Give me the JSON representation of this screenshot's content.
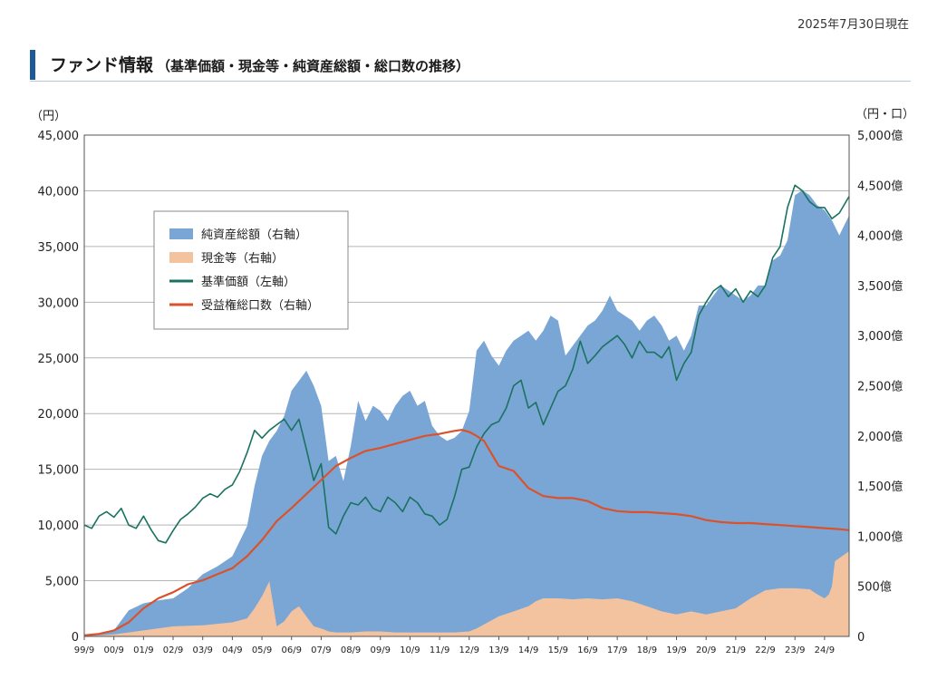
{
  "header": {
    "as_of": "2025年7月30日現在",
    "title": "ファンド情報",
    "subtitle": "（基準価額・現金等・純資産総額・総口数の推移）"
  },
  "chart_data": {
    "type": "area",
    "left_axis": {
      "unit_label": "（円）",
      "min": 0,
      "max": 45000,
      "ticks": [
        "0",
        "5,000",
        "10,000",
        "15,000",
        "20,000",
        "25,000",
        "30,000",
        "35,000",
        "40,000",
        "45,000"
      ]
    },
    "right_axis": {
      "unit_label": "（円・口）",
      "min": 0,
      "max": 5000,
      "ticks": [
        "0",
        "500億",
        "1,000億",
        "1,500億",
        "2,000億",
        "2,500億",
        "3,000億",
        "3,500億",
        "4,000億",
        "4,500億",
        "5,000億"
      ]
    },
    "x_axis": {
      "min": 1999.75,
      "max": 2025.58,
      "ticks": [
        "99/9",
        "00/9",
        "01/9",
        "02/9",
        "03/9",
        "04/9",
        "05/9",
        "06/9",
        "07/9",
        "08/9",
        "09/9",
        "10/9",
        "11/9",
        "12/9",
        "13/9",
        "14/9",
        "15/9",
        "16/9",
        "17/9",
        "18/9",
        "19/9",
        "20/9",
        "21/9",
        "22/9",
        "23/9",
        "24/9"
      ]
    },
    "grid": true,
    "legend": {
      "placement": "upper-left",
      "items": [
        {
          "label": "純資産総額（右軸）",
          "kind": "area",
          "color": "#7aa6d6"
        },
        {
          "label": "現金等（右軸）",
          "kind": "area",
          "color": "#f3c3a0"
        },
        {
          "label": "基準価額（左軸）",
          "kind": "line",
          "color": "#1a7260"
        },
        {
          "label": "受益権総口数（右軸）",
          "kind": "line",
          "color": "#d9522c"
        }
      ]
    },
    "series": [
      {
        "name": "純資産総額（右軸）",
        "axis": "right",
        "kind": "area",
        "color": "#7aa6d6",
        "x": [
          1999.75,
          2000.25,
          2000.75,
          2001.25,
          2001.75,
          2002.25,
          2002.75,
          2003.25,
          2003.75,
          2004.25,
          2004.75,
          2005.25,
          2005.5,
          2005.75,
          2006.0,
          2006.25,
          2006.5,
          2006.75,
          2007.0,
          2007.25,
          2007.5,
          2007.75,
          2008.0,
          2008.25,
          2008.5,
          2008.75,
          2009.0,
          2009.25,
          2009.5,
          2009.75,
          2010.0,
          2010.25,
          2010.5,
          2010.75,
          2011.0,
          2011.25,
          2011.5,
          2011.75,
          2012.0,
          2012.25,
          2012.5,
          2012.75,
          2013.0,
          2013.25,
          2013.5,
          2013.75,
          2014.0,
          2014.25,
          2014.5,
          2014.75,
          2015.0,
          2015.25,
          2015.5,
          2015.75,
          2016.0,
          2016.25,
          2016.5,
          2016.75,
          2017.0,
          2017.25,
          2017.5,
          2017.75,
          2018.0,
          2018.25,
          2018.5,
          2018.75,
          2019.0,
          2019.25,
          2019.5,
          2019.75,
          2020.0,
          2020.25,
          2020.5,
          2020.75,
          2021.0,
          2021.25,
          2021.5,
          2021.75,
          2022.0,
          2022.25,
          2022.5,
          2022.75,
          2023.0,
          2023.25,
          2023.5,
          2023.75,
          2024.0,
          2024.25,
          2024.5,
          2024.75,
          2025.0,
          2025.25,
          2025.58
        ],
        "values": [
          0,
          20,
          60,
          260,
          330,
          360,
          380,
          480,
          620,
          700,
          800,
          1100,
          1500,
          1800,
          1950,
          2050,
          2200,
          2450,
          2550,
          2650,
          2500,
          2300,
          1750,
          1800,
          1550,
          1900,
          2350,
          2150,
          2300,
          2250,
          2150,
          2300,
          2400,
          2450,
          2300,
          2350,
          2100,
          2000,
          1950,
          1980,
          2050,
          2250,
          2850,
          2950,
          2800,
          2700,
          2850,
          2950,
          3000,
          3050,
          2950,
          3050,
          3200,
          3150,
          2800,
          2900,
          3000,
          3100,
          3150,
          3250,
          3400,
          3250,
          3200,
          3150,
          3050,
          3150,
          3200,
          3100,
          2950,
          3000,
          2850,
          3000,
          3300,
          3300,
          3400,
          3500,
          3450,
          3400,
          3350,
          3400,
          3500,
          3500,
          3750,
          3800,
          3950,
          4400,
          4450,
          4400,
          4300,
          4250,
          4150,
          4000,
          4200
        ]
      },
      {
        "name": "現金等（右軸）",
        "axis": "right",
        "kind": "area",
        "color": "#f3c3a0",
        "x": [
          1999.75,
          2000.75,
          2001.75,
          2002.75,
          2003.75,
          2004.75,
          2005.25,
          2005.5,
          2005.75,
          2006.0,
          2006.25,
          2006.5,
          2006.75,
          2007.0,
          2007.25,
          2007.5,
          2007.75,
          2008.0,
          2008.25,
          2008.75,
          2009.25,
          2009.75,
          2010.25,
          2010.75,
          2011.25,
          2011.75,
          2012.25,
          2012.75,
          2013.0,
          2013.25,
          2013.75,
          2014.25,
          2014.75,
          2015.0,
          2015.25,
          2015.75,
          2016.25,
          2016.75,
          2017.25,
          2017.75,
          2018.25,
          2018.75,
          2019.25,
          2019.75,
          2020.25,
          2020.75,
          2021.25,
          2021.75,
          2022.25,
          2022.75,
          2023.25,
          2023.75,
          2024.25,
          2024.5,
          2024.75,
          2024.9,
          2025.0,
          2025.1,
          2025.58
        ],
        "values": [
          0,
          20,
          60,
          100,
          110,
          140,
          180,
          280,
          400,
          550,
          100,
          150,
          250,
          300,
          200,
          100,
          80,
          50,
          40,
          40,
          50,
          50,
          40,
          40,
          40,
          40,
          40,
          50,
          80,
          120,
          200,
          250,
          300,
          350,
          380,
          380,
          370,
          380,
          370,
          380,
          350,
          300,
          250,
          220,
          250,
          220,
          250,
          280,
          380,
          460,
          480,
          480,
          470,
          420,
          380,
          420,
          500,
          750,
          850
        ]
      },
      {
        "name": "基準価額（左軸）",
        "axis": "left",
        "kind": "line",
        "color": "#1a7260",
        "x": [
          1999.75,
          2000.0,
          2000.25,
          2000.5,
          2000.75,
          2001.0,
          2001.25,
          2001.5,
          2001.75,
          2002.0,
          2002.25,
          2002.5,
          2002.75,
          2003.0,
          2003.25,
          2003.5,
          2003.75,
          2004.0,
          2004.25,
          2004.5,
          2004.75,
          2005.0,
          2005.25,
          2005.5,
          2005.75,
          2006.0,
          2006.25,
          2006.5,
          2006.75,
          2007.0,
          2007.25,
          2007.5,
          2007.75,
          2008.0,
          2008.25,
          2008.5,
          2008.75,
          2009.0,
          2009.25,
          2009.5,
          2009.75,
          2010.0,
          2010.25,
          2010.5,
          2010.75,
          2011.0,
          2011.25,
          2011.5,
          2011.75,
          2012.0,
          2012.25,
          2012.5,
          2012.75,
          2013.0,
          2013.25,
          2013.5,
          2013.75,
          2014.0,
          2014.25,
          2014.5,
          2014.75,
          2015.0,
          2015.25,
          2015.5,
          2015.75,
          2016.0,
          2016.25,
          2016.5,
          2016.75,
          2017.0,
          2017.25,
          2017.5,
          2017.75,
          2018.0,
          2018.25,
          2018.5,
          2018.75,
          2019.0,
          2019.25,
          2019.5,
          2019.75,
          2020.0,
          2020.25,
          2020.5,
          2020.75,
          2021.0,
          2021.25,
          2021.5,
          2021.75,
          2022.0,
          2022.25,
          2022.5,
          2022.75,
          2023.0,
          2023.25,
          2023.5,
          2023.75,
          2024.0,
          2024.25,
          2024.5,
          2024.75,
          2025.0,
          2025.25,
          2025.58
        ],
        "values": [
          10000,
          9700,
          10800,
          11200,
          10700,
          11500,
          10000,
          9700,
          10800,
          9600,
          8600,
          8400,
          9500,
          10500,
          11000,
          11600,
          12400,
          12800,
          12500,
          13200,
          13600,
          14800,
          16500,
          18500,
          17800,
          18500,
          19000,
          19500,
          18500,
          19500,
          16800,
          14000,
          15500,
          9800,
          9200,
          10800,
          12000,
          11800,
          12500,
          11500,
          11200,
          12500,
          12000,
          11200,
          12500,
          12000,
          11000,
          10800,
          10000,
          10500,
          12500,
          15000,
          15200,
          17000,
          18200,
          19000,
          19300,
          20500,
          22500,
          23000,
          20500,
          21000,
          19000,
          20500,
          22000,
          22500,
          24000,
          26500,
          24500,
          25200,
          26000,
          26500,
          27000,
          26200,
          25000,
          26500,
          25500,
          25500,
          25000,
          26000,
          23000,
          24500,
          25500,
          28800,
          30000,
          31000,
          31500,
          30500,
          31200,
          30000,
          31000,
          30500,
          31500,
          34000,
          35000,
          38500,
          40500,
          40000,
          39000,
          38500,
          38500,
          37500,
          38000,
          39500
        ]
      },
      {
        "name": "受益権総口数（右軸）",
        "axis": "right",
        "kind": "line",
        "color": "#d9522c",
        "x": [
          1999.75,
          2000.25,
          2000.75,
          2001.25,
          2001.75,
          2002.25,
          2002.75,
          2003.25,
          2003.75,
          2004.25,
          2004.75,
          2005.25,
          2005.75,
          2006.25,
          2006.75,
          2007.25,
          2007.75,
          2008.25,
          2008.75,
          2009.25,
          2009.75,
          2010.25,
          2010.75,
          2011.25,
          2011.75,
          2012.25,
          2012.5,
          2012.75,
          2013.0,
          2013.25,
          2013.75,
          2014.25,
          2014.75,
          2015.25,
          2015.75,
          2016.25,
          2016.75,
          2017.25,
          2017.75,
          2018.25,
          2018.75,
          2019.25,
          2019.75,
          2020.25,
          2020.75,
          2021.25,
          2021.75,
          2022.25,
          2022.75,
          2023.25,
          2023.75,
          2024.25,
          2024.75,
          2025.25,
          2025.58
        ],
        "values": [
          10,
          25,
          60,
          140,
          280,
          380,
          440,
          520,
          560,
          620,
          680,
          800,
          960,
          1150,
          1280,
          1420,
          1560,
          1700,
          1780,
          1850,
          1880,
          1920,
          1960,
          2000,
          2020,
          2050,
          2060,
          2040,
          2000,
          1950,
          1700,
          1650,
          1480,
          1400,
          1380,
          1380,
          1350,
          1280,
          1250,
          1240,
          1240,
          1230,
          1220,
          1200,
          1160,
          1140,
          1130,
          1130,
          1120,
          1110,
          1100,
          1090,
          1080,
          1070,
          1060
        ]
      }
    ]
  }
}
